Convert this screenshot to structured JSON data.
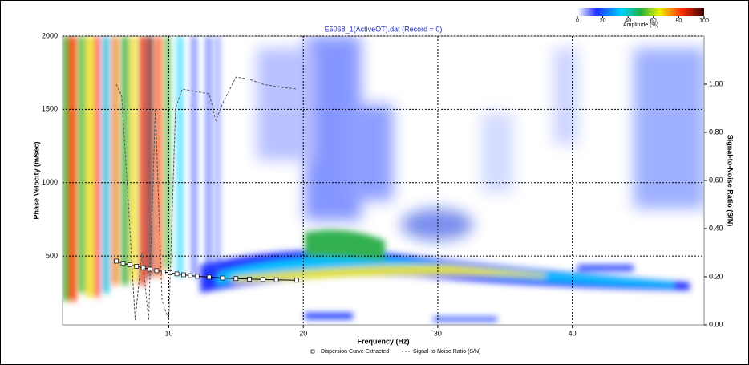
{
  "chart_data": {
    "type": "dispersion",
    "title": "E5068_1(ActiveOT).dat (Record = 0)",
    "x_label": "Frequency (Hz)",
    "y_label": "Phase Velocity (m/sec)",
    "y2_label": "Signal-to-Noise Ratio (S/N)",
    "xlim": [
      2.1,
      49.8
    ],
    "xticks": [
      10,
      20,
      30,
      40
    ],
    "ylim": [
      30,
      2000
    ],
    "yticks": [
      500,
      1000,
      1500,
      2000
    ],
    "y2lim": [
      0,
      1.2
    ],
    "y2ticks": [
      {
        "value": 0,
        "label": "0.00"
      },
      {
        "value": 0.2,
        "label": "0.20"
      },
      {
        "value": 0.4,
        "label": "0.40"
      },
      {
        "value": 0.6,
        "label": "0.60"
      },
      {
        "value": 0.8,
        "label": "0.80"
      },
      {
        "value": 1,
        "label": "1.00"
      }
    ],
    "grid": true,
    "colorbar": {
      "label": "Amplitude (%)",
      "lim": [
        0,
        100
      ],
      "ticks": [
        0,
        20,
        40,
        60,
        80,
        100
      ]
    },
    "series": [
      {
        "name": "Dispersion Curve Extracted",
        "color": "#ffffff",
        "x": [
          6.1,
          6.6,
          7.1,
          7.6,
          8.1,
          8.6,
          9.1,
          9.6,
          10.1,
          10.6,
          11.1,
          11.6,
          12.1,
          13,
          14,
          15,
          16,
          17,
          18,
          19.5
        ],
        "values": [
          465,
          450,
          440,
          430,
          420,
          410,
          400,
          392,
          385,
          378,
          372,
          366,
          362,
          356,
          350,
          346,
          343,
          340,
          338,
          335
        ]
      },
      {
        "name": "Signal-to-Noise Ratio (S/N)",
        "color": "#555555",
        "axis": "y2",
        "x": [
          6.1,
          6.5,
          7,
          7.5,
          8,
          8.5,
          9,
          9.5,
          10,
          10.5,
          11,
          12,
          13,
          13.5,
          14,
          15,
          16,
          17,
          18,
          19.5
        ],
        "values": [
          1.0,
          0.95,
          0.5,
          0.02,
          0.3,
          0.02,
          0.9,
          0.1,
          0.02,
          0.9,
          0.98,
          0.97,
          0.96,
          0.85,
          0.92,
          1.03,
          1.02,
          1.0,
          0.99,
          0.98
        ]
      }
    ]
  }
}
